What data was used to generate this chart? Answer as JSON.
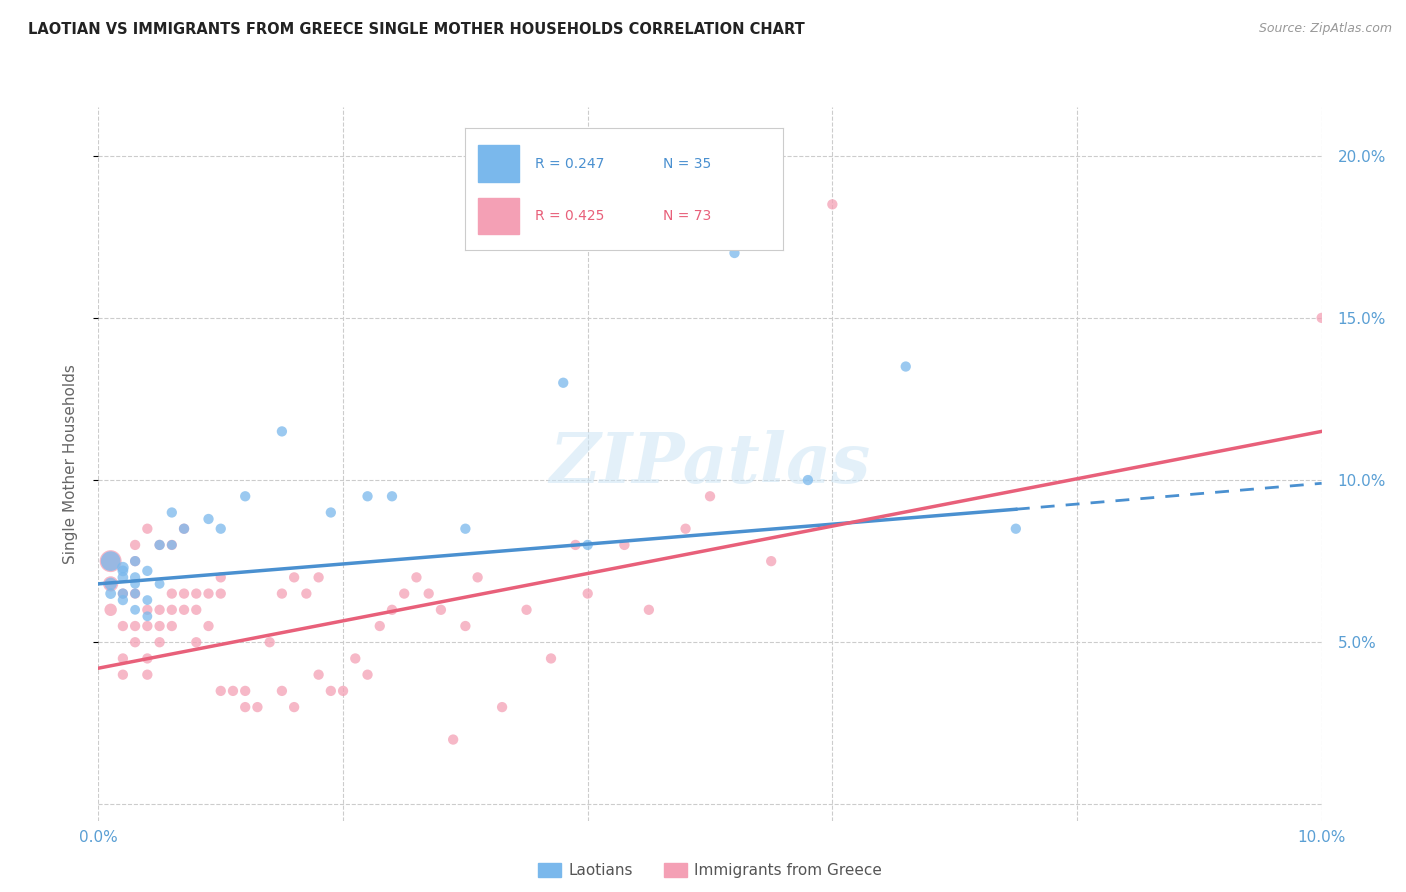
{
  "title": "LAOTIAN VS IMMIGRANTS FROM GREECE SINGLE MOTHER HOUSEHOLDS CORRELATION CHART",
  "source": "Source: ZipAtlas.com",
  "ylabel_label": "Single Mother Households",
  "xlim": [
    0.0,
    0.1
  ],
  "ylim": [
    -0.005,
    0.215
  ],
  "xticks": [
    0.0,
    0.02,
    0.04,
    0.06,
    0.08,
    0.1
  ],
  "yticks": [
    0.05,
    0.1,
    0.15,
    0.2
  ],
  "xtick_labels": [
    "0.0%",
    "",
    "",
    "",
    "",
    "10.0%"
  ],
  "ytick_labels_right": [
    "5.0%",
    "10.0%",
    "15.0%",
    "20.0%"
  ],
  "legend_label1": "Laotians",
  "legend_label2": "Immigrants from Greece",
  "r1": "R = 0.247",
  "n1": "N = 35",
  "r2": "R = 0.425",
  "n2": "N = 73",
  "color1": "#7ab8ec",
  "color2": "#f4a0b5",
  "trend1_color": "#4a90d0",
  "trend2_color": "#e8607a",
  "watermark": "ZIPatlas",
  "laotian_x": [
    0.001,
    0.001,
    0.001,
    0.002,
    0.002,
    0.002,
    0.002,
    0.002,
    0.003,
    0.003,
    0.003,
    0.003,
    0.003,
    0.004,
    0.004,
    0.004,
    0.005,
    0.005,
    0.006,
    0.006,
    0.007,
    0.009,
    0.01,
    0.012,
    0.015,
    0.019,
    0.022,
    0.024,
    0.03,
    0.038,
    0.04,
    0.052,
    0.058,
    0.066,
    0.075
  ],
  "laotian_y": [
    0.075,
    0.068,
    0.065,
    0.073,
    0.07,
    0.065,
    0.063,
    0.072,
    0.07,
    0.065,
    0.06,
    0.075,
    0.068,
    0.072,
    0.058,
    0.063,
    0.08,
    0.068,
    0.09,
    0.08,
    0.085,
    0.088,
    0.085,
    0.095,
    0.115,
    0.09,
    0.095,
    0.095,
    0.085,
    0.13,
    0.08,
    0.17,
    0.1,
    0.135,
    0.085
  ],
  "laotian_sizes": [
    200,
    80,
    60,
    70,
    60,
    55,
    55,
    60,
    55,
    50,
    50,
    55,
    50,
    55,
    50,
    50,
    55,
    50,
    55,
    50,
    55,
    55,
    55,
    55,
    55,
    55,
    55,
    55,
    55,
    55,
    55,
    55,
    55,
    55,
    55
  ],
  "greece_x": [
    0.001,
    0.001,
    0.001,
    0.002,
    0.002,
    0.002,
    0.002,
    0.003,
    0.003,
    0.003,
    0.003,
    0.003,
    0.004,
    0.004,
    0.004,
    0.004,
    0.004,
    0.005,
    0.005,
    0.005,
    0.005,
    0.006,
    0.006,
    0.006,
    0.006,
    0.007,
    0.007,
    0.007,
    0.008,
    0.008,
    0.008,
    0.009,
    0.009,
    0.01,
    0.01,
    0.01,
    0.011,
    0.012,
    0.012,
    0.013,
    0.014,
    0.015,
    0.015,
    0.016,
    0.016,
    0.017,
    0.018,
    0.018,
    0.019,
    0.02,
    0.021,
    0.022,
    0.023,
    0.024,
    0.025,
    0.026,
    0.027,
    0.028,
    0.029,
    0.03,
    0.031,
    0.033,
    0.035,
    0.037,
    0.039,
    0.04,
    0.043,
    0.045,
    0.048,
    0.05,
    0.055,
    0.06,
    0.1
  ],
  "greece_y": [
    0.075,
    0.068,
    0.06,
    0.04,
    0.045,
    0.055,
    0.065,
    0.055,
    0.05,
    0.065,
    0.075,
    0.08,
    0.055,
    0.06,
    0.045,
    0.04,
    0.085,
    0.055,
    0.05,
    0.06,
    0.08,
    0.08,
    0.065,
    0.055,
    0.06,
    0.085,
    0.065,
    0.06,
    0.065,
    0.06,
    0.05,
    0.065,
    0.055,
    0.07,
    0.065,
    0.035,
    0.035,
    0.035,
    0.03,
    0.03,
    0.05,
    0.035,
    0.065,
    0.07,
    0.03,
    0.065,
    0.07,
    0.04,
    0.035,
    0.035,
    0.045,
    0.04,
    0.055,
    0.06,
    0.065,
    0.07,
    0.065,
    0.06,
    0.02,
    0.055,
    0.07,
    0.03,
    0.06,
    0.045,
    0.08,
    0.065,
    0.08,
    0.06,
    0.085,
    0.095,
    0.075,
    0.185,
    0.15
  ],
  "greece_sizes": [
    250,
    120,
    80,
    55,
    55,
    55,
    55,
    55,
    55,
    55,
    55,
    55,
    55,
    55,
    55,
    55,
    55,
    55,
    55,
    55,
    55,
    55,
    55,
    55,
    55,
    55,
    55,
    55,
    55,
    55,
    55,
    55,
    55,
    55,
    55,
    55,
    55,
    55,
    55,
    55,
    55,
    55,
    55,
    55,
    55,
    55,
    55,
    55,
    55,
    55,
    55,
    55,
    55,
    55,
    55,
    55,
    55,
    55,
    55,
    55,
    55,
    55,
    55,
    55,
    55,
    55,
    55,
    55,
    55,
    55,
    55,
    55,
    55
  ],
  "trend1_x0": 0.0,
  "trend1_y0": 0.068,
  "trend1_x1": 0.075,
  "trend1_y1": 0.091,
  "trend1_xdash_end": 0.1,
  "trend1_ydash_end": 0.099,
  "trend2_x0": 0.0,
  "trend2_y0": 0.042,
  "trend2_x1": 0.1,
  "trend2_y1": 0.115
}
